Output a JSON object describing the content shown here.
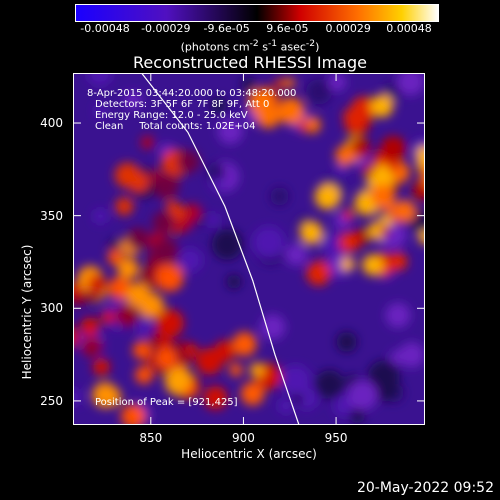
{
  "colorbar": {
    "ticks": [
      "-0.00048",
      "-0.00029",
      "-9.6e-05",
      "9.6e-05",
      "0.00029",
      "0.00048"
    ],
    "unit_prefix": "(photons cm",
    "unit_sup1": "-2",
    "unit_mid": " s",
    "unit_sup2": "-1",
    "unit_mid2": " asec",
    "unit_sup3": "-2",
    "unit_suffix": ")"
  },
  "chart_data": {
    "type": "heatmap",
    "title": "Reconstructed RHESSI Image",
    "xlabel": "Heliocentric X (arcsec)",
    "ylabel": "Heliocentric Y (arcsec)",
    "xlim": [
      808,
      998
    ],
    "ylim": [
      237,
      427
    ],
    "xticks": [
      "850",
      "900",
      "950"
    ],
    "xtick_values": [
      850,
      900,
      950
    ],
    "yticks": [
      "250",
      "300",
      "350",
      "400"
    ],
    "ytick_values": [
      250,
      300,
      350,
      400
    ],
    "colorbar_range": [
      -0.00048,
      0.00048
    ],
    "peak": {
      "x": 921,
      "y": 425
    },
    "limb_curve": [
      [
        845,
        427
      ],
      [
        870,
        395
      ],
      [
        890,
        355
      ],
      [
        905,
        315
      ],
      [
        917,
        275
      ],
      [
        930,
        237
      ]
    ],
    "annotations": {
      "line1": "8-Apr-2015 03:44:20.000 to 03:48:20.000",
      "line2": "Detectors: 3F 5F 6F 7F 8F 9F, Att 0",
      "line3": "Energy Range: 12.0 - 25.0 keV",
      "line4": "Clean     Total counts: 1.02E+04",
      "peak_label": "Position of Peak = [921,425]"
    }
  },
  "footer": {
    "date": "20-May-2022 09:52"
  }
}
